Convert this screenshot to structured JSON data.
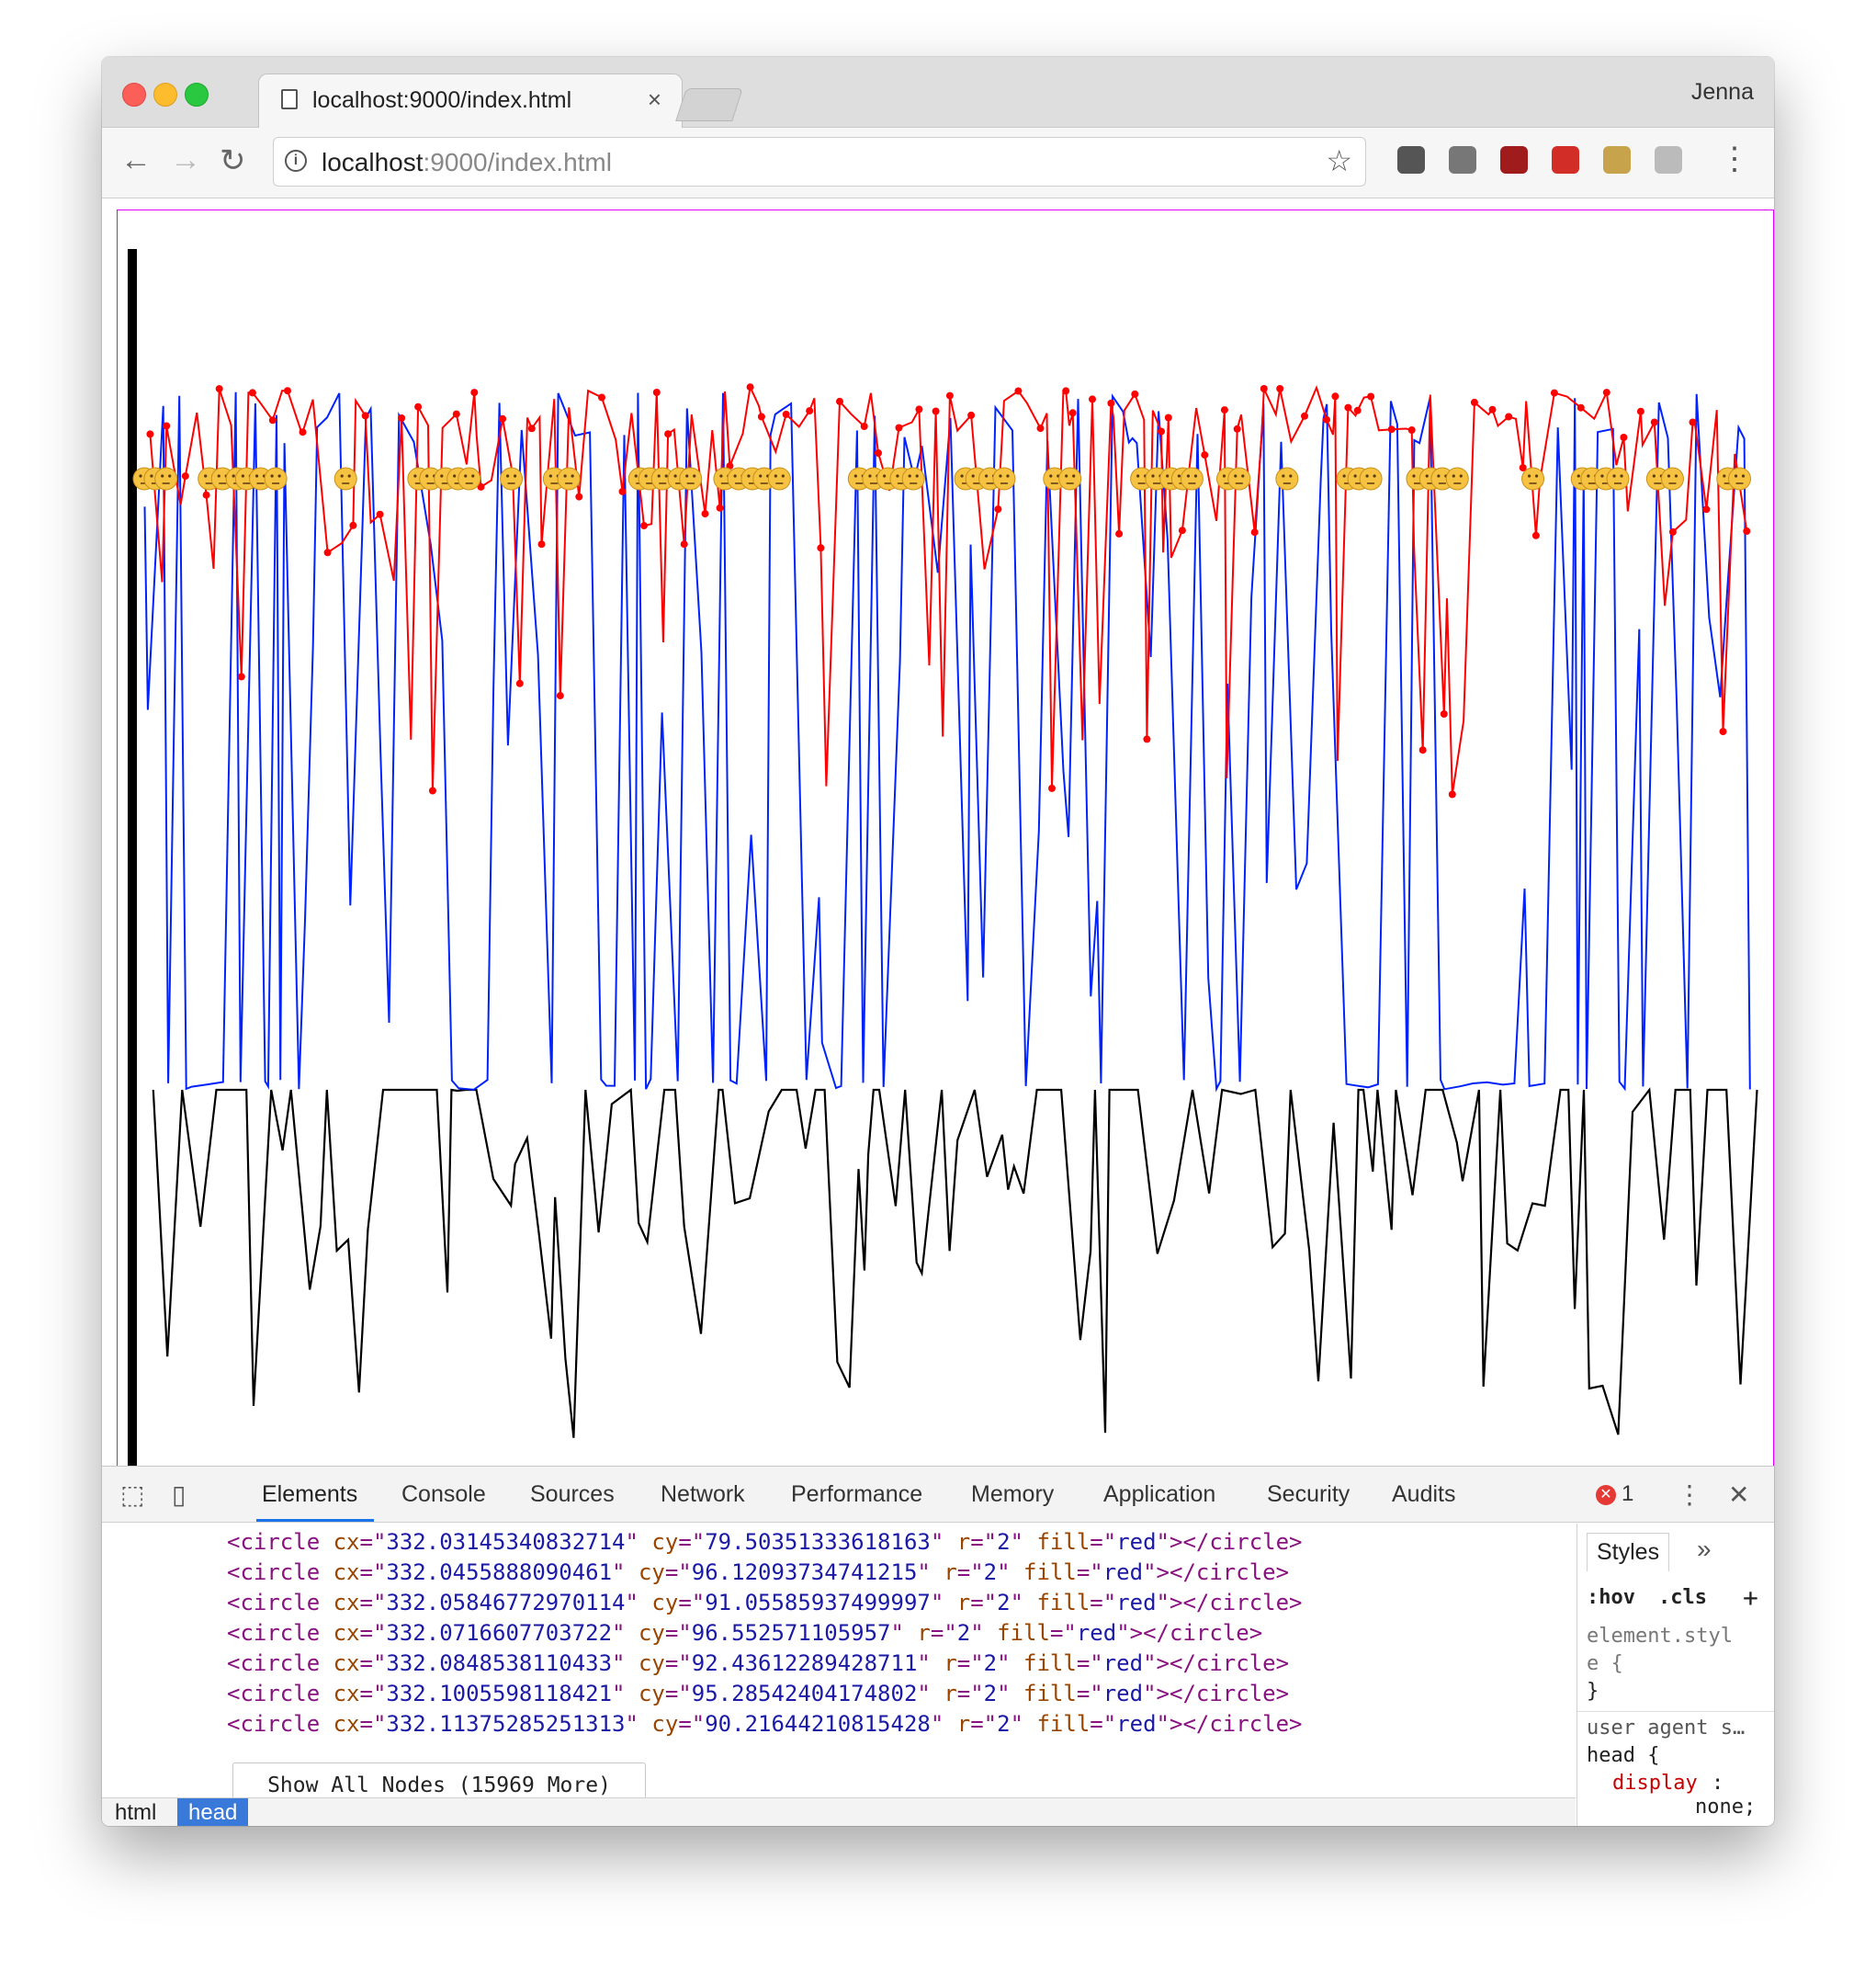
{
  "browser": {
    "tab_title": "localhost:9000/index.html",
    "tab_close": "×",
    "profile_name": "Jenna",
    "url_host": "localhost",
    "url_rest": ":9000/index.html",
    "back": "←",
    "forward": "→",
    "reload": "↻",
    "star": "☆",
    "info": "i",
    "menu": "⋮",
    "extensions": [
      {
        "name": "evernote-extension-icon",
        "color": "#555555"
      },
      {
        "name": "bookmark-extension-icon",
        "color": "#777777"
      },
      {
        "name": "ublock-extension-icon",
        "color": "#a01c1c"
      },
      {
        "name": "lastpass-extension-icon",
        "color": "#d32d27"
      },
      {
        "name": "plant-extension-icon",
        "color": "#c7a34b"
      },
      {
        "name": "puzzle-extension-icon",
        "color": "#bbbbbb"
      }
    ]
  },
  "viz": {
    "colors": {
      "red": "#ff0000",
      "blue": "#0022ff",
      "black": "#000000",
      "frame": "#e000ff",
      "emoji": "#f5c242"
    }
  },
  "devtools": {
    "tabs": [
      "Elements",
      "Console",
      "Sources",
      "Network",
      "Performance",
      "Memory",
      "Application",
      "Security",
      "Audits"
    ],
    "active_tab": "Elements",
    "error_count": "1",
    "error_icon": "✕",
    "close": "✕",
    "menu": "⋮",
    "code_lines": [
      {
        "cx": "332.03145340832714",
        "cy": "79.50351333618163",
        "r": "2",
        "fill": "red"
      },
      {
        "cx": "332.0455888090461",
        "cy": "96.12093734741215",
        "r": "2",
        "fill": "red"
      },
      {
        "cx": "332.05846772970114",
        "cy": "91.05585937499997",
        "r": "2",
        "fill": "red"
      },
      {
        "cx": "332.0716607703722",
        "cy": "96.552571105957",
        "r": "2",
        "fill": "red"
      },
      {
        "cx": "332.0848538110433",
        "cy": "92.43612289428711",
        "r": "2",
        "fill": "red"
      },
      {
        "cx": "332.1005598118421",
        "cy": "95.28542404174802",
        "r": "2",
        "fill": "red"
      },
      {
        "cx": "332.11375285251313",
        "cy": "90.21644210815428",
        "r": "2",
        "fill": "red"
      }
    ],
    "show_all": "Show All Nodes (15969 More)",
    "breadcrumbs": [
      "html",
      "head"
    ],
    "styles": {
      "tab": "Styles",
      "more": "»",
      "hov": ":hov",
      "cls": ".cls",
      "plus": "+",
      "element_style_1": "element.styl",
      "element_style_2": "e {",
      "close_brace": "}",
      "user_agent": "user agent s…",
      "head_rule": "head {",
      "prop": "display",
      "colon": ":",
      "value": "none;"
    }
  }
}
